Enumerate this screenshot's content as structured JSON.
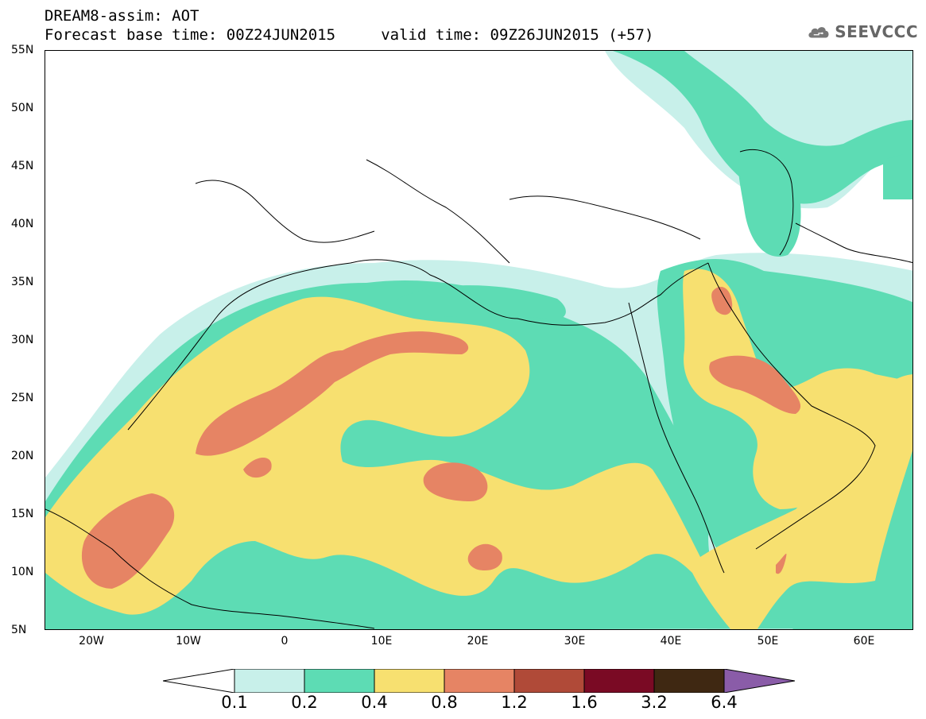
{
  "header": {
    "title_line1": "DREAM8-assim: AOT",
    "title_line2": "Forecast base time: 00Z24JUN2015     valid time: 09Z26JUN2015 (+57)"
  },
  "logo": {
    "text": "SEEVCCC",
    "icon": "cloud-logo-icon"
  },
  "map": {
    "region": "North Africa, Mediterranean, Middle East",
    "lat_labels": [
      "55N",
      "50N",
      "45N",
      "40N",
      "35N",
      "30N",
      "25N",
      "20N",
      "15N",
      "10N",
      "5N"
    ],
    "lon_labels": [
      "20W",
      "10W",
      "0",
      "10E",
      "20E",
      "30E",
      "40E",
      "50E",
      "60E"
    ]
  },
  "legend": {
    "labels": [
      "0.1",
      "0.2",
      "0.4",
      "0.8",
      "1.2",
      "1.6",
      "3.2",
      "6.4"
    ],
    "colors": {
      "low_arrow": "#ffffff",
      "0.1-0.2": "#c8f0ea",
      "0.2-0.4": "#5ddcb4",
      "0.4-0.8": "#f7e070",
      "0.8-1.2": "#e68464",
      "1.2-1.6": "#b04a38",
      "1.6-3.2": "#7a0a24",
      "3.2-6.4": "#3f2812",
      "high_arrow": "#8a5ca8"
    }
  }
}
